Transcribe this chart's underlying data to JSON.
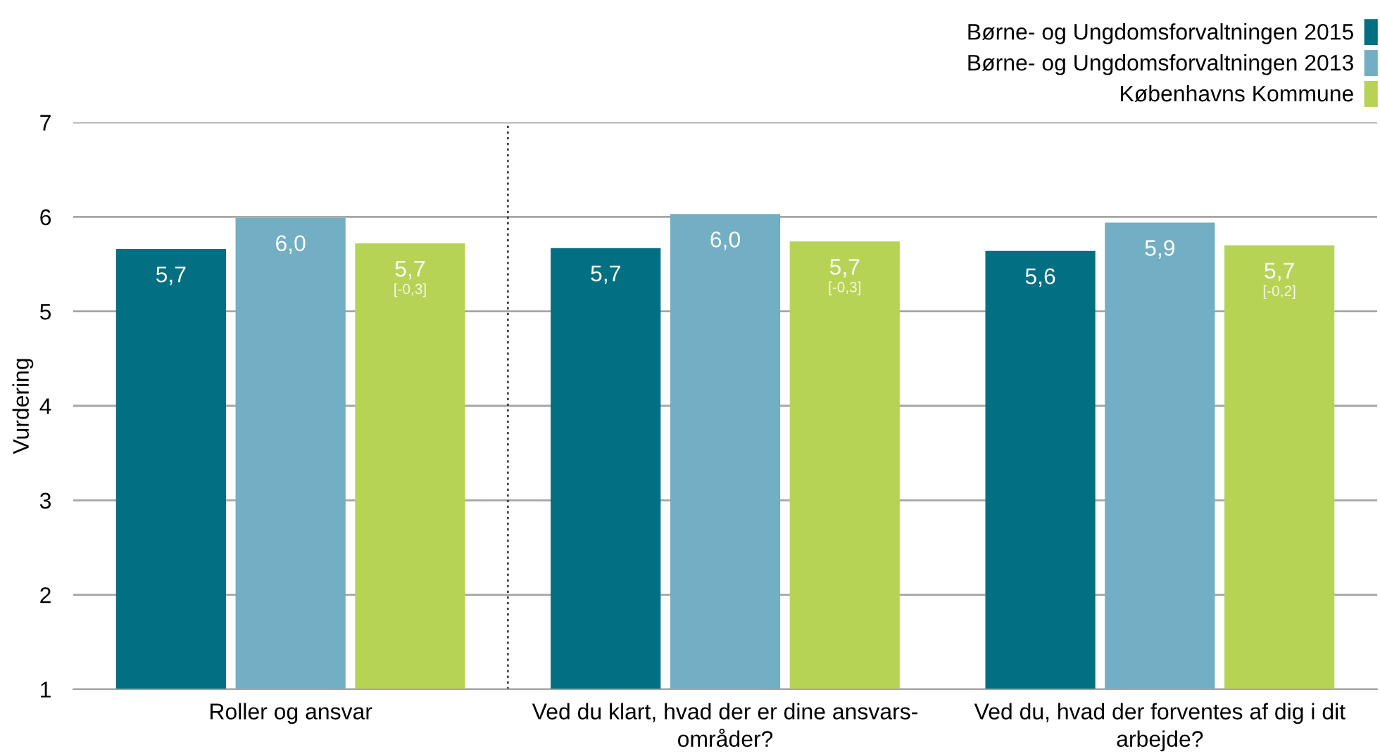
{
  "chart_data": {
    "type": "bar",
    "categories": [
      "Roller og ansvar",
      "Ved du klart, hvad der er dine ansvars-\nområder?",
      "Ved du, hvad der forventes af dig i dit\narbejde?"
    ],
    "series": [
      {
        "name": "Børne- og Ungdomsforvaltningen 2015",
        "color": "#036f82",
        "values": [
          5.66,
          5.67,
          5.64
        ],
        "value_labels": [
          "5,7",
          "5,7",
          "5,6"
        ]
      },
      {
        "name": "Børne- og Ungdomsforvaltningen 2013",
        "color": "#72aec4",
        "values": [
          5.99,
          6.03,
          5.94
        ],
        "value_labels": [
          "6,0",
          "6,0",
          "5,9"
        ]
      },
      {
        "name": "Københavns Kommune",
        "color": "#b6d355",
        "values": [
          5.72,
          5.74,
          5.7
        ],
        "value_labels": [
          "5,7\n[-0,3]",
          "5,7\n[-0,3]",
          "5,7\n[-0,2]"
        ]
      }
    ],
    "ylabel": "Vurdering",
    "ylim": [
      1,
      7
    ],
    "yticks": [
      1,
      2,
      3,
      4,
      5,
      6,
      7
    ],
    "grid": "y",
    "legend": "top right"
  }
}
